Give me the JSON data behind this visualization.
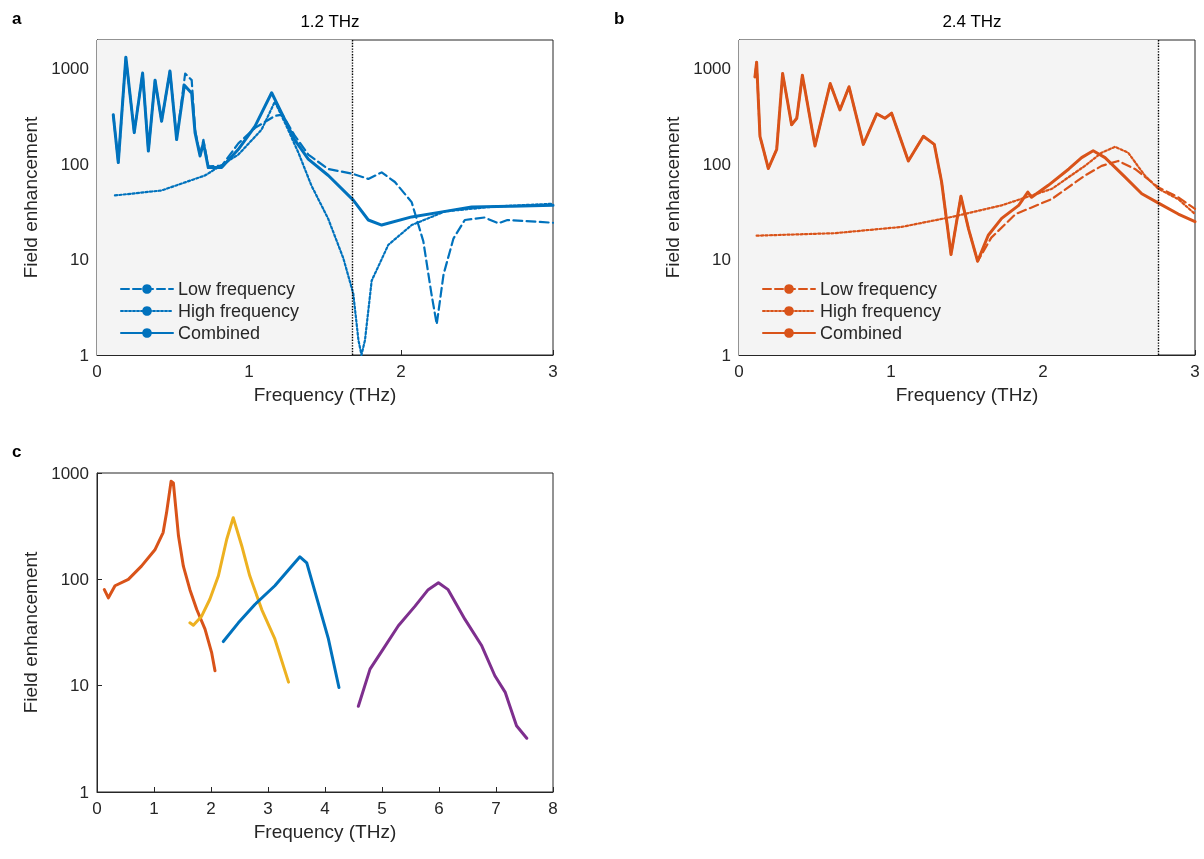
{
  "chart_data": [
    {
      "type": "line",
      "title": "1.2 THz",
      "annotations": [
        "a"
      ],
      "xlabel": "Frequency (THz)",
      "ylabel": "Field enhancement",
      "log": "y",
      "xlim": [
        0,
        3
      ],
      "xticks": [
        0,
        1,
        2,
        3
      ],
      "ylim": [
        1,
        2000
      ],
      "yticks": [
        1,
        10,
        100,
        1000
      ],
      "grid": false,
      "legend": "bottom left",
      "marker": "none",
      "bands": [
        {
          "axis": "x",
          "from": 0,
          "to": 1.68,
          "color": "#f4f4f4"
        }
      ],
      "ref_lines": [
        {
          "axis": "x",
          "value": 1.68,
          "color": "#000000",
          "line_style": "dotted"
        }
      ],
      "series": [
        {
          "name": "Low frequency",
          "color": "#0072bd",
          "line_style": "dashed",
          "x": [
            0.107,
            0.14,
            0.19,
            0.245,
            0.3,
            0.338,
            0.382,
            0.425,
            0.48,
            0.524,
            0.58,
            0.623,
            0.645,
            0.678,
            0.7,
            0.732,
            0.82,
            0.93,
            1.04,
            1.17,
            1.22,
            1.3,
            1.39,
            1.52,
            1.686,
            1.785,
            1.873,
            1.96,
            2.07,
            2.147,
            2.2,
            2.235,
            2.28,
            2.345,
            2.42,
            2.55,
            2.64,
            2.7,
            3.0
          ],
          "values": [
            329,
            104,
            1320,
            214,
            900,
            137,
            757,
            282,
            946,
            181,
            890,
            760,
            230,
            122,
            180,
            95,
            96,
            165,
            240,
            320,
            330,
            200,
            126,
            89,
            79,
            70,
            82,
            65,
            40,
            15.5,
            4.4,
            2.1,
            7,
            16.6,
            26,
            27.6,
            24,
            26,
            24.3
          ]
        },
        {
          "name": "High frequency",
          "color": "#0072bd",
          "line_style": "dotted",
          "x": [
            0.118,
            0.425,
            0.71,
            0.93,
            1.083,
            1.17,
            1.237,
            1.325,
            1.41,
            1.52,
            1.62,
            1.686,
            1.72,
            1.74,
            1.763,
            1.807,
            1.917,
            2.07,
            2.29,
            2.62,
            3.0
          ],
          "values": [
            47,
            53,
            76,
            126,
            230,
            452,
            270,
            132,
            60,
            27,
            10.4,
            4.4,
            1.43,
            1,
            1.43,
            6,
            14.3,
            23,
            32,
            36,
            38.5
          ]
        },
        {
          "name": "Combined",
          "color": "#0072bd",
          "line_style": "solid",
          "x": [
            0.107,
            0.14,
            0.19,
            0.245,
            0.3,
            0.338,
            0.382,
            0.425,
            0.48,
            0.524,
            0.575,
            0.623,
            0.645,
            0.678,
            0.7,
            0.732,
            0.82,
            0.93,
            1.04,
            1.149,
            1.215,
            1.3,
            1.39,
            1.522,
            1.686,
            1.785,
            1.873,
            2.07,
            2.29,
            2.465,
            2.73,
            3.0
          ],
          "values": [
            329,
            104,
            1320,
            214,
            900,
            137,
            757,
            282,
            946,
            181,
            672,
            552,
            214,
            122,
            167,
            92,
            92,
            143,
            250,
            560,
            342,
            181,
            113,
            76,
            42,
            26,
            23,
            28,
            32,
            35.5,
            36.3,
            37
          ]
        }
      ]
    },
    {
      "type": "line",
      "title": "2.4 THz",
      "annotations": [
        "b"
      ],
      "xlabel": "Frequency (THz)",
      "ylabel": "Field enhancement",
      "log": "y",
      "xlim": [
        0,
        3
      ],
      "xticks": [
        0,
        1,
        2,
        3
      ],
      "ylim": [
        1,
        2000
      ],
      "yticks": [
        1,
        10,
        100,
        1000
      ],
      "grid": false,
      "legend": "bottom left",
      "marker": "none",
      "bands": [
        {
          "axis": "x",
          "from": 0,
          "to": 2.76,
          "color": "#f4f4f4"
        }
      ],
      "ref_lines": [
        {
          "axis": "x",
          "value": 2.76,
          "color": "#000000",
          "line_style": "dotted"
        }
      ],
      "series": [
        {
          "name": "Low frequency",
          "color": "#d95319",
          "line_style": "dashed",
          "x": [
            0.105,
            0.116,
            0.138,
            0.193,
            0.248,
            0.287,
            0.346,
            0.38,
            0.417,
            0.5,
            0.6,
            0.664,
            0.724,
            0.818,
            0.906,
            0.96,
            1.004,
            1.114,
            1.213,
            1.285,
            1.333,
            1.395,
            1.46,
            1.51,
            1.57,
            1.66,
            1.82,
            2.057,
            2.276,
            2.386,
            2.495,
            2.605,
            2.76,
            2.89,
            3.0
          ],
          "values": [
            820,
            1170,
            196,
            90,
            143,
            890,
            259,
            303,
            853,
            155,
            700,
            370,
            647,
            161,
            337,
            303,
            342,
            108,
            196,
            161,
            65,
            11.3,
            46,
            21,
            9.6,
            17,
            30,
            43,
            76,
            96,
            108,
            89,
            57,
            45,
            34
          ]
        },
        {
          "name": "High frequency",
          "color": "#d95319",
          "line_style": "dotted",
          "x": [
            0.116,
            0.63,
            1.07,
            1.4,
            1.728,
            2.057,
            2.276,
            2.386,
            2.474,
            2.56,
            2.67,
            2.76,
            2.89,
            3.0
          ],
          "values": [
            17.8,
            18.9,
            22,
            28,
            37,
            55,
            96,
            132,
            152,
            132,
            76,
            55,
            43,
            30
          ]
        },
        {
          "name": "Combined",
          "color": "#d95319",
          "line_style": "solid",
          "x": [
            0.105,
            0.116,
            0.138,
            0.193,
            0.248,
            0.287,
            0.346,
            0.38,
            0.417,
            0.5,
            0.6,
            0.664,
            0.724,
            0.818,
            0.906,
            0.96,
            1.004,
            1.114,
            1.213,
            1.285,
            1.333,
            1.395,
            1.46,
            1.51,
            1.57,
            1.64,
            1.728,
            1.84,
            1.9,
            1.925,
            2.035,
            2.17,
            2.254,
            2.33,
            2.408,
            2.54,
            2.65,
            2.76,
            2.89,
            3.0
          ],
          "values": [
            820,
            1170,
            196,
            90,
            143,
            890,
            259,
            303,
            853,
            155,
            700,
            370,
            647,
            161,
            337,
            303,
            342,
            108,
            196,
            161,
            65,
            11.3,
            46,
            21,
            9.6,
            18,
            27,
            37,
            51,
            45,
            60,
            89,
            117,
            138,
            117,
            73,
            49,
            39,
            30,
            25
          ]
        }
      ]
    },
    {
      "type": "line",
      "annotations": [
        "c"
      ],
      "xlabel": "Frequency (THz)",
      "ylabel": "Field enhancement",
      "log": "y",
      "xlim": [
        0,
        8
      ],
      "xticks": [
        0,
        1,
        2,
        3,
        4,
        5,
        6,
        7,
        8
      ],
      "ylim": [
        1,
        1000
      ],
      "yticks": [
        1,
        10,
        100,
        1000
      ],
      "grid": false,
      "marker": "none",
      "series": [
        {
          "color": "#d95319",
          "x": [
            0.129,
            0.2,
            0.316,
            0.55,
            0.78,
            1.02,
            1.16,
            1.22,
            1.3,
            1.34,
            1.43,
            1.515,
            1.63,
            1.75,
            1.895,
            2.01,
            2.07
          ],
          "values": [
            80,
            67,
            87,
            100,
            133,
            191,
            275,
            422,
            835,
            805,
            255,
            133,
            80,
            52,
            34,
            20.6,
            13.8
          ]
        },
        {
          "color": "#edb120",
          "x": [
            1.63,
            1.69,
            1.836,
            1.98,
            2.13,
            2.275,
            2.39,
            2.54,
            2.68,
            2.89,
            3.12,
            3.36
          ],
          "values": [
            39,
            37,
            45,
            65,
            108,
            237,
            380,
            206,
            108,
            52,
            27.5,
            10.8
          ]
        },
        {
          "color": "#0072bd",
          "x": [
            2.216,
            2.48,
            2.77,
            3.12,
            3.415,
            3.56,
            3.68,
            3.88,
            4.06,
            4.245
          ],
          "values": [
            26,
            39,
            58,
            87,
            133,
            163,
            143,
            60,
            27.5,
            9.6
          ]
        },
        {
          "color": "#7e2f8e",
          "x": [
            4.585,
            4.79,
            4.994,
            5.287,
            5.58,
            5.81,
            5.99,
            6.16,
            6.456,
            6.75,
            6.98,
            7.16,
            7.36,
            7.54
          ],
          "values": [
            6.4,
            14.3,
            21,
            36.6,
            56,
            80,
            93,
            80,
            42,
            23.7,
            12.4,
            8.7,
            4.2,
            3.2
          ]
        }
      ]
    }
  ]
}
